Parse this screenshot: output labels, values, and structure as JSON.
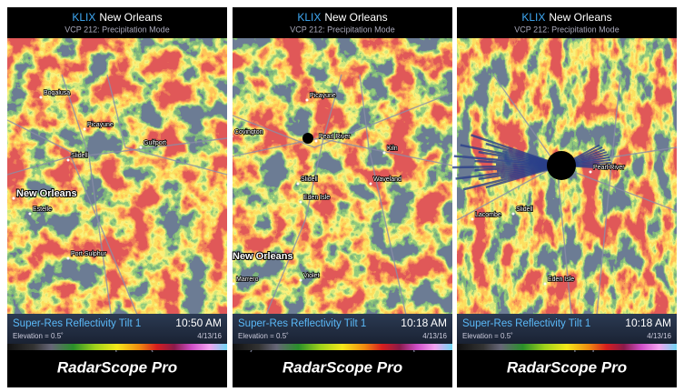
{
  "panels": [
    {
      "station": "KLIX",
      "city": "New Orleans",
      "mode": "VCP 212: Precipitation Mode",
      "product": "Super-Res Reflectivity Tilt 1",
      "time": "10:50 AM",
      "elevation": "Elevation = 0.5˚",
      "date": "4/13/16",
      "brand": "RadarScope Pro",
      "places": [
        "Bogalusa",
        "Picayune",
        "Slidell",
        "Gulfport",
        "New Orleans",
        "Estelle",
        "Port Sulphur"
      ]
    },
    {
      "station": "KLIX",
      "city": "New Orleans",
      "mode": "VCP 212: Precipitation Mode",
      "product": "Super-Res Reflectivity Tilt 1",
      "time": "10:18 AM",
      "elevation": "Elevation = 0.5˚",
      "date": "4/13/16",
      "brand": "RadarScope Pro",
      "places": [
        "Picayune",
        "Covington",
        "Pearl River",
        "Slidell",
        "Kiln",
        "Eden Isle",
        "Waveland",
        "New Orleans",
        "Violet",
        "Marrero"
      ]
    },
    {
      "station": "KLIX",
      "city": "New Orleans",
      "mode": "VCP 212: Precipitation Mode",
      "product": "Super-Res Reflectivity Tilt 1",
      "time": "10:18 AM",
      "elevation": "Elevation = 0.5˚",
      "date": "4/13/16",
      "brand": "RadarScope Pro",
      "places": [
        "Pearl River",
        "Lacombe",
        "Slidell",
        "Eden Isle"
      ]
    }
  ]
}
